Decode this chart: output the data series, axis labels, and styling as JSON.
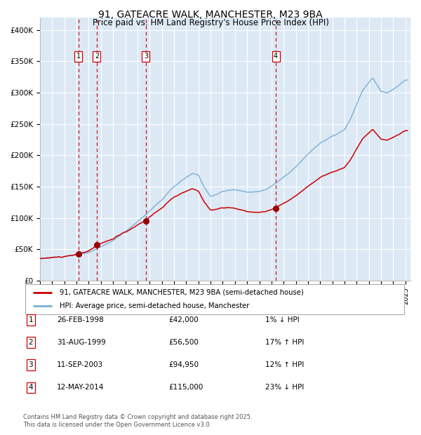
{
  "title_line1": "91, GATEACRE WALK, MANCHESTER, M23 9BA",
  "title_line2": "Price paid vs. HM Land Registry's House Price Index (HPI)",
  "background_color": "#ffffff",
  "plot_bg_color": "#dce9f5",
  "grid_color": "#ffffff",
  "sale_dates": [
    "1998-02-26",
    "1999-08-31",
    "2003-09-11",
    "2014-05-12"
  ],
  "sale_prices": [
    42000,
    56500,
    94950,
    115000
  ],
  "sale_labels": [
    "1",
    "2",
    "3",
    "4"
  ],
  "legend_entries": [
    "91, GATEACRE WALK, MANCHESTER, M23 9BA (semi-detached house)",
    "HPI: Average price, semi-detached house, Manchester"
  ],
  "table_rows": [
    [
      "1",
      "26-FEB-1998",
      "£42,000",
      "1% ↓ HPI"
    ],
    [
      "2",
      "31-AUG-1999",
      "£56,500",
      "17% ↑ HPI"
    ],
    [
      "3",
      "11-SEP-2003",
      "£94,950",
      "12% ↑ HPI"
    ],
    [
      "4",
      "12-MAY-2014",
      "£115,000",
      "23% ↓ HPI"
    ]
  ],
  "footer": "Contains HM Land Registry data © Crown copyright and database right 2025.\nThis data is licensed under the Open Government Licence v3.0.",
  "hpi_line_color": "#7bafd4",
  "price_line_color": "#cc0000",
  "dot_color": "#990000",
  "vline_color": "#cc0000",
  "shade_color": "#dce9f5",
  "ylim": [
    0,
    420000
  ],
  "yticks": [
    0,
    50000,
    100000,
    150000,
    200000,
    250000,
    300000,
    350000,
    400000
  ],
  "ytick_labels": [
    "£0",
    "£50K",
    "£100K",
    "£150K",
    "£200K",
    "£250K",
    "£300K",
    "£350K",
    "£400K"
  ]
}
